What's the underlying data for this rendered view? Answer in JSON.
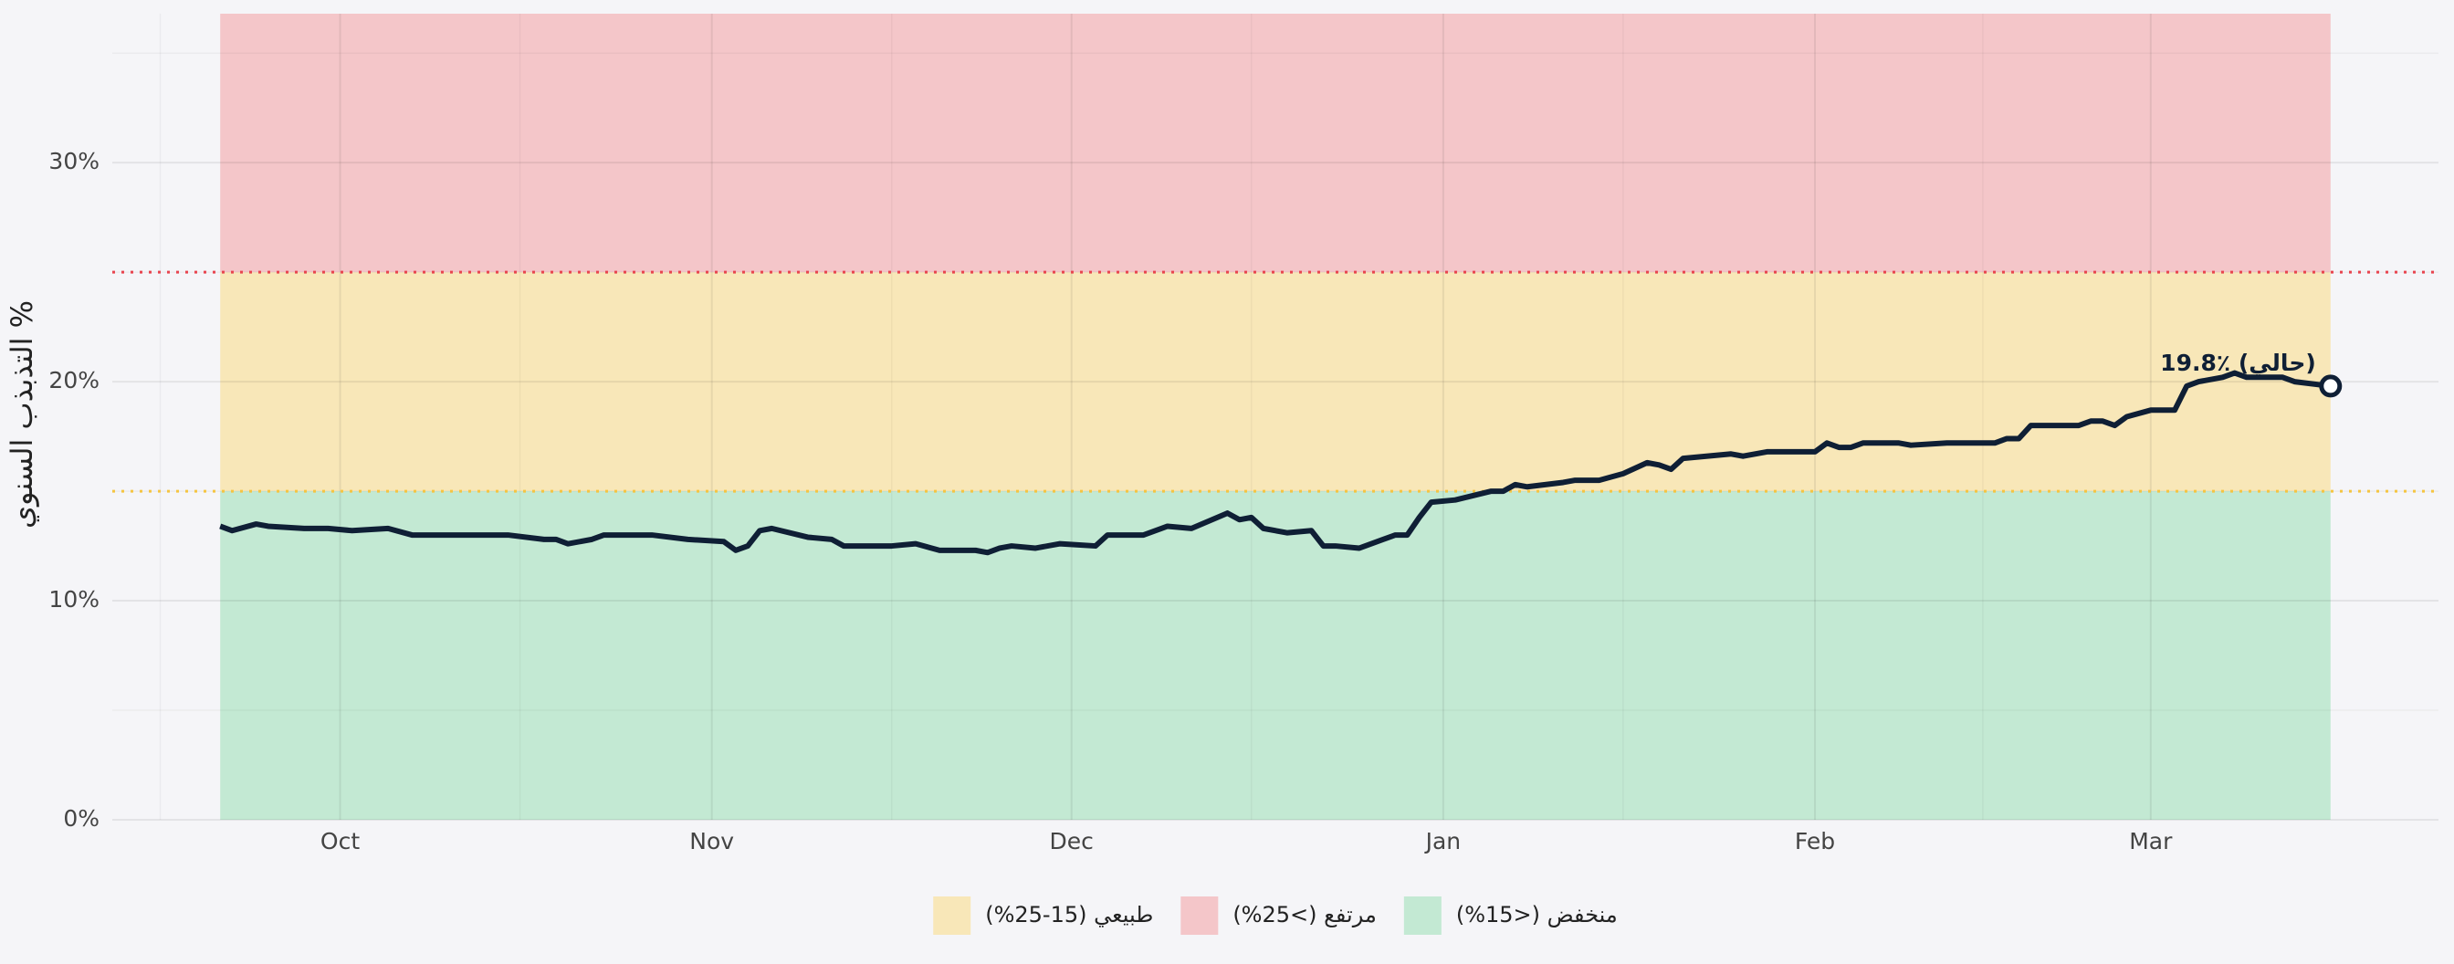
{
  "chart_data": {
    "type": "line",
    "y_label": "التذبذب السنوي %",
    "annotation": "19.8٪ (حالي)",
    "x": [
      0,
      1,
      3,
      4,
      7,
      9,
      11,
      14,
      16,
      18,
      21,
      22,
      24,
      27,
      28,
      29,
      31,
      32,
      36,
      39,
      42,
      43,
      44,
      45,
      46,
      49,
      51,
      52,
      56,
      58,
      60,
      63,
      64,
      65,
      66,
      68,
      70,
      73,
      74,
      77,
      79,
      81,
      84,
      85,
      86,
      87,
      89,
      91,
      92,
      93,
      95,
      97,
      98,
      99,
      100,
      101,
      103,
      106,
      107,
      108,
      109,
      112,
      113,
      115,
      117,
      119,
      120,
      121,
      122,
      126,
      127,
      129,
      133,
      134,
      135,
      136,
      137,
      140,
      141,
      144,
      148,
      149,
      150,
      151,
      155,
      156,
      157,
      158,
      159,
      161,
      163,
      164,
      165,
      167,
      168,
      169,
      171,
      172,
      173,
      176
    ],
    "series": [
      {
        "color": "#0f1f35",
        "values": [
          13.4,
          13.2,
          13.5,
          13.4,
          13.3,
          13.3,
          13.2,
          13.3,
          13.0,
          13.0,
          13.0,
          13.0,
          13.0,
          12.8,
          12.8,
          12.6,
          12.8,
          13.0,
          13.0,
          12.8,
          12.7,
          12.3,
          12.5,
          13.2,
          13.3,
          12.9,
          12.8,
          12.5,
          12.5,
          12.6,
          12.3,
          12.3,
          12.2,
          12.4,
          12.5,
          12.4,
          12.6,
          12.5,
          13.0,
          13.0,
          13.4,
          13.3,
          14.0,
          13.7,
          13.8,
          13.3,
          13.1,
          13.2,
          12.5,
          12.5,
          12.4,
          12.8,
          13.0,
          13.0,
          13.8,
          14.5,
          14.6,
          15.0,
          15.0,
          15.3,
          15.2,
          15.4,
          15.5,
          15.5,
          15.8,
          16.3,
          16.2,
          16.0,
          16.5,
          16.7,
          16.6,
          16.8,
          16.8,
          17.2,
          17.0,
          17.0,
          17.2,
          17.2,
          17.1,
          17.2,
          17.2,
          17.4,
          17.4,
          18.0,
          18.0,
          18.2,
          18.2,
          18.0,
          18.4,
          18.7,
          18.7,
          19.8,
          20.0,
          20.2,
          20.4,
          20.2,
          20.2,
          20.2,
          20.0,
          19.8
        ]
      }
    ],
    "xlim": [
      -9,
      185
    ],
    "xticks": [
      {
        "value": 10,
        "label": "Oct"
      },
      {
        "value": 41,
        "label": "Nov"
      },
      {
        "value": 71,
        "label": "Dec"
      },
      {
        "value": 102,
        "label": "Jan"
      },
      {
        "value": 133,
        "label": "Feb"
      },
      {
        "value": 161,
        "label": "Mar"
      }
    ],
    "minor_xticks": [
      -5,
      25,
      56,
      86,
      117,
      147
    ],
    "ylim": [
      0,
      36.8
    ],
    "yticks": [
      {
        "value": 0,
        "label": "0%"
      },
      {
        "value": 10,
        "label": "10%"
      },
      {
        "value": 20,
        "label": "20%"
      },
      {
        "value": 30,
        "label": "30%"
      }
    ],
    "minor_yticks": [
      5,
      15,
      25,
      35
    ],
    "grid": true,
    "bands": [
      {
        "name": "طبيعي (15-25%)",
        "range": [
          15,
          25
        ],
        "color": "#f8e7b8"
      },
      {
        "name": "مرتفع (>25%)",
        "range": [
          25,
          36.8
        ],
        "color": "#f4c6c9"
      },
      {
        "name": "منخفض (<15%)",
        "range": [
          0,
          15
        ],
        "color": "#c3e9d3"
      }
    ],
    "thresholds": [
      {
        "value": 15,
        "color": "#f5c542"
      },
      {
        "value": 25,
        "color": "#e8454f"
      }
    ]
  }
}
